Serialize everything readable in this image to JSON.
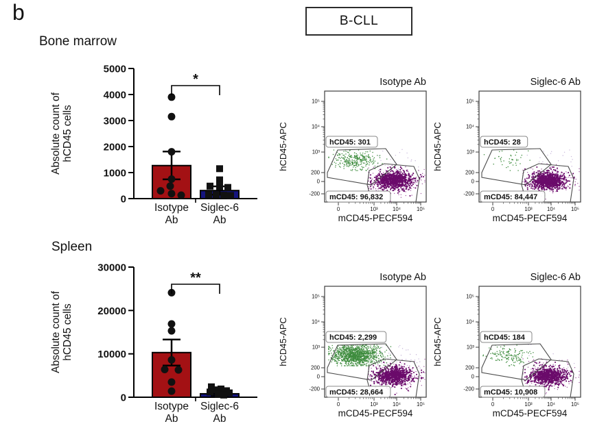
{
  "panel_label": "b",
  "figure_title": "B-CLL",
  "sections": [
    {
      "name": "Bone marrow"
    },
    {
      "name": "Spleen"
    }
  ],
  "colors": {
    "isotype_bar": "#A31114",
    "siglec_bar": "#15157F",
    "marker": "#111111",
    "axis": "#000000",
    "flow_green": "#3E8C3E",
    "flow_purple": "#6B0B6B",
    "flow_purple_fringe": "#8A2E8A",
    "flow_stray": "#B9A4D0",
    "gate_stroke": "#4a4a4a"
  },
  "chart_data": [
    {
      "type": "bar",
      "id": "bone-marrow-counts",
      "section": "Bone marrow",
      "ylabel": "Absolute count of hCD45 cells",
      "ylabel_lines": [
        "Absolute count of",
        "hCD45 cells"
      ],
      "categories": [
        [
          "Isotype",
          "Ab"
        ],
        [
          "Siglec-6",
          "Ab"
        ]
      ],
      "values": [
        1270,
        310
      ],
      "error_upper": [
        1810,
        470
      ],
      "error_lower": [
        740,
        150
      ],
      "points": [
        [
          3900,
          3150,
          1800,
          750,
          480,
          300,
          190,
          130
        ],
        [
          1150,
          720,
          480,
          460,
          430,
          160,
          150,
          130,
          120
        ]
      ],
      "point_offsets": [
        [
          0,
          0,
          0,
          0,
          -2,
          -16,
          0,
          14
        ],
        [
          0,
          0,
          -14,
          0,
          12,
          -16,
          -5,
          6,
          16
        ]
      ],
      "point_markers": [
        "circle",
        "square"
      ],
      "ylim": [
        0,
        5000
      ],
      "yticks": [
        0,
        1000,
        2000,
        3000,
        4000,
        5000
      ],
      "significance": "*"
    },
    {
      "type": "bar",
      "id": "spleen-counts",
      "section": "Spleen",
      "ylabel": "Absolute count of hCD45 cells",
      "ylabel_lines": [
        "Absolute count of",
        "hCD45 cells"
      ],
      "categories": [
        [
          "Isotype",
          "Ab"
        ],
        [
          "Siglec-6",
          "Ab"
        ]
      ],
      "values": [
        10300,
        800
      ],
      "error_upper": [
        13300,
        1200
      ],
      "error_lower": [
        7300,
        400
      ],
      "points": [
        [
          24100,
          16900,
          15300,
          8600,
          6400,
          6300,
          3500,
          1400
        ],
        [
          2400,
          1900,
          1700,
          1500,
          1200,
          1000,
          700,
          500
        ]
      ],
      "point_offsets": [
        [
          0,
          0,
          0,
          0,
          -10,
          10,
          0,
          0
        ],
        [
          -12,
          2,
          -4,
          10,
          -14,
          14,
          -2,
          6
        ]
      ],
      "point_markers": [
        "circle",
        "square"
      ],
      "ylim": [
        0,
        30000
      ],
      "yticks": [
        0,
        10000,
        20000,
        30000
      ],
      "significance": "**"
    },
    {
      "type": "scatter",
      "subtype": "flow-cytometry",
      "id": "bm-isotype-flow",
      "section": "Bone marrow",
      "title": "Isotype Ab",
      "xlabel": "mCD45-PECF594",
      "ylabel": "hCD45-APC",
      "xticks": [
        "0",
        "10³",
        "10⁴",
        "10⁵"
      ],
      "yticks": [
        "-200",
        "0",
        "200",
        "10³",
        "10⁴",
        "10⁵"
      ],
      "gates": [
        {
          "name": "hCD45-gate",
          "label": "hCD45: 301",
          "count": 301
        },
        {
          "name": "mCD45-gate",
          "label": "mCD45: 96,832",
          "count": 96832
        }
      ],
      "visual": {
        "green_n": 280,
        "green_spread": [
          16,
          6.5
        ],
        "purple_n": 800,
        "fringe_n": 220,
        "stray_n": 36,
        "seed": 7
      }
    },
    {
      "type": "scatter",
      "subtype": "flow-cytometry",
      "id": "bm-siglec6-flow",
      "section": "Bone marrow",
      "title": "Siglec-6 Ab",
      "xlabel": "mCD45-PECF594",
      "ylabel": "hCD45-APC",
      "xticks": [
        "0",
        "10³",
        "10⁴",
        "10⁵"
      ],
      "yticks": [
        "-200",
        "0",
        "200",
        "10³",
        "10⁴",
        "10⁵"
      ],
      "gates": [
        {
          "name": "hCD45-gate",
          "label": "hCD45: 28",
          "count": 28
        },
        {
          "name": "mCD45-gate",
          "label": "mCD45: 84,447",
          "count": 84447
        }
      ],
      "visual": {
        "green_n": 42,
        "green_spread": [
          16,
          6.5
        ],
        "purple_n": 780,
        "fringe_n": 200,
        "stray_n": 30,
        "seed": 13
      }
    },
    {
      "type": "scatter",
      "subtype": "flow-cytometry",
      "id": "spleen-isotype-flow",
      "section": "Spleen",
      "title": "Isotype Ab",
      "xlabel": "mCD45-PECF594",
      "ylabel": "hCD45-APC",
      "xticks": [
        "0",
        "10³",
        "10⁴",
        "10⁵"
      ],
      "yticks": [
        "-200",
        "0",
        "200",
        "10³",
        "10⁴",
        "10⁵"
      ],
      "gates": [
        {
          "name": "hCD45-gate",
          "label": "hCD45: 2,299",
          "count": 2299
        },
        {
          "name": "mCD45-gate",
          "label": "mCD45: 28,664",
          "count": 28664
        }
      ],
      "visual": {
        "green_n": 1250,
        "green_spread": [
          18,
          7.5
        ],
        "purple_n": 760,
        "fringe_n": 240,
        "stray_n": 60,
        "seed": 21
      }
    },
    {
      "type": "scatter",
      "subtype": "flow-cytometry",
      "id": "spleen-siglec6-flow",
      "section": "Spleen",
      "title": "Siglec-6 Ab",
      "xlabel": "mCD45-PECF594",
      "ylabel": "hCD45-APC",
      "xticks": [
        "0",
        "10³",
        "10⁴",
        "10⁵"
      ],
      "yticks": [
        "-200",
        "0",
        "200",
        "10³",
        "10⁴",
        "10⁵"
      ],
      "gates": [
        {
          "name": "hCD45-gate",
          "label": "hCD45: 184",
          "count": 184
        },
        {
          "name": "mCD45-gate",
          "label": "mCD45: 10,908",
          "count": 10908
        }
      ],
      "visual": {
        "green_n": 150,
        "green_spread": [
          16,
          6.5
        ],
        "purple_n": 740,
        "fringe_n": 210,
        "stray_n": 30,
        "seed": 29
      }
    }
  ]
}
